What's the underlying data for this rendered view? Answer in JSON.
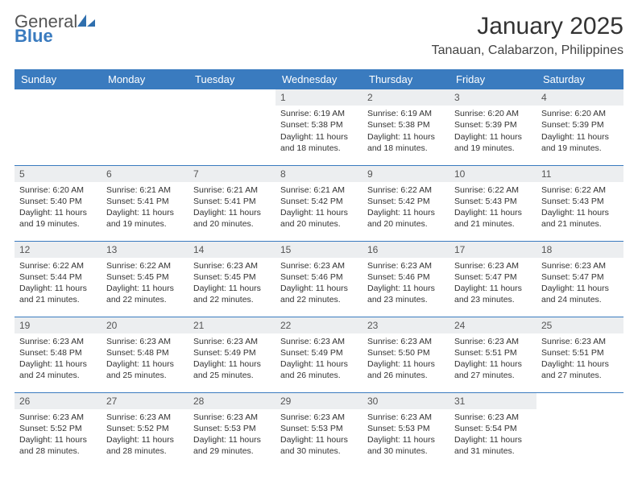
{
  "brand": {
    "name_a": "General",
    "name_b": "Blue",
    "mark_color": "#2f6fae"
  },
  "title": "January 2025",
  "location": "Tanauan, Calabarzon, Philippines",
  "colors": {
    "header_bg": "#3a7bbf",
    "header_text": "#ffffff",
    "daynum_bg": "#eceef0",
    "rule": "#3a7bbf",
    "body_text": "#333333",
    "background": "#ffffff"
  },
  "typography": {
    "body_fontsize": 10.5,
    "title_fontsize": 30,
    "location_fontsize": 16,
    "header_fontsize": 13
  },
  "day_headers": [
    "Sunday",
    "Monday",
    "Tuesday",
    "Wednesday",
    "Thursday",
    "Friday",
    "Saturday"
  ],
  "labels": {
    "sunrise": "Sunrise:",
    "sunset": "Sunset:",
    "daylight": "Daylight:"
  },
  "weeks": [
    [
      {
        "empty": true
      },
      {
        "empty": true
      },
      {
        "empty": true
      },
      {
        "n": "1",
        "sr": "6:19 AM",
        "ss": "5:38 PM",
        "dl": "11 hours and 18 minutes."
      },
      {
        "n": "2",
        "sr": "6:19 AM",
        "ss": "5:38 PM",
        "dl": "11 hours and 18 minutes."
      },
      {
        "n": "3",
        "sr": "6:20 AM",
        "ss": "5:39 PM",
        "dl": "11 hours and 19 minutes."
      },
      {
        "n": "4",
        "sr": "6:20 AM",
        "ss": "5:39 PM",
        "dl": "11 hours and 19 minutes."
      }
    ],
    [
      {
        "n": "5",
        "sr": "6:20 AM",
        "ss": "5:40 PM",
        "dl": "11 hours and 19 minutes."
      },
      {
        "n": "6",
        "sr": "6:21 AM",
        "ss": "5:41 PM",
        "dl": "11 hours and 19 minutes."
      },
      {
        "n": "7",
        "sr": "6:21 AM",
        "ss": "5:41 PM",
        "dl": "11 hours and 20 minutes."
      },
      {
        "n": "8",
        "sr": "6:21 AM",
        "ss": "5:42 PM",
        "dl": "11 hours and 20 minutes."
      },
      {
        "n": "9",
        "sr": "6:22 AM",
        "ss": "5:42 PM",
        "dl": "11 hours and 20 minutes."
      },
      {
        "n": "10",
        "sr": "6:22 AM",
        "ss": "5:43 PM",
        "dl": "11 hours and 21 minutes."
      },
      {
        "n": "11",
        "sr": "6:22 AM",
        "ss": "5:43 PM",
        "dl": "11 hours and 21 minutes."
      }
    ],
    [
      {
        "n": "12",
        "sr": "6:22 AM",
        "ss": "5:44 PM",
        "dl": "11 hours and 21 minutes."
      },
      {
        "n": "13",
        "sr": "6:22 AM",
        "ss": "5:45 PM",
        "dl": "11 hours and 22 minutes."
      },
      {
        "n": "14",
        "sr": "6:23 AM",
        "ss": "5:45 PM",
        "dl": "11 hours and 22 minutes."
      },
      {
        "n": "15",
        "sr": "6:23 AM",
        "ss": "5:46 PM",
        "dl": "11 hours and 22 minutes."
      },
      {
        "n": "16",
        "sr": "6:23 AM",
        "ss": "5:46 PM",
        "dl": "11 hours and 23 minutes."
      },
      {
        "n": "17",
        "sr": "6:23 AM",
        "ss": "5:47 PM",
        "dl": "11 hours and 23 minutes."
      },
      {
        "n": "18",
        "sr": "6:23 AM",
        "ss": "5:47 PM",
        "dl": "11 hours and 24 minutes."
      }
    ],
    [
      {
        "n": "19",
        "sr": "6:23 AM",
        "ss": "5:48 PM",
        "dl": "11 hours and 24 minutes."
      },
      {
        "n": "20",
        "sr": "6:23 AM",
        "ss": "5:48 PM",
        "dl": "11 hours and 25 minutes."
      },
      {
        "n": "21",
        "sr": "6:23 AM",
        "ss": "5:49 PM",
        "dl": "11 hours and 25 minutes."
      },
      {
        "n": "22",
        "sr": "6:23 AM",
        "ss": "5:49 PM",
        "dl": "11 hours and 26 minutes."
      },
      {
        "n": "23",
        "sr": "6:23 AM",
        "ss": "5:50 PM",
        "dl": "11 hours and 26 minutes."
      },
      {
        "n": "24",
        "sr": "6:23 AM",
        "ss": "5:51 PM",
        "dl": "11 hours and 27 minutes."
      },
      {
        "n": "25",
        "sr": "6:23 AM",
        "ss": "5:51 PM",
        "dl": "11 hours and 27 minutes."
      }
    ],
    [
      {
        "n": "26",
        "sr": "6:23 AM",
        "ss": "5:52 PM",
        "dl": "11 hours and 28 minutes."
      },
      {
        "n": "27",
        "sr": "6:23 AM",
        "ss": "5:52 PM",
        "dl": "11 hours and 28 minutes."
      },
      {
        "n": "28",
        "sr": "6:23 AM",
        "ss": "5:53 PM",
        "dl": "11 hours and 29 minutes."
      },
      {
        "n": "29",
        "sr": "6:23 AM",
        "ss": "5:53 PM",
        "dl": "11 hours and 30 minutes."
      },
      {
        "n": "30",
        "sr": "6:23 AM",
        "ss": "5:53 PM",
        "dl": "11 hours and 30 minutes."
      },
      {
        "n": "31",
        "sr": "6:23 AM",
        "ss": "5:54 PM",
        "dl": "11 hours and 31 minutes."
      },
      {
        "empty": true
      }
    ]
  ]
}
